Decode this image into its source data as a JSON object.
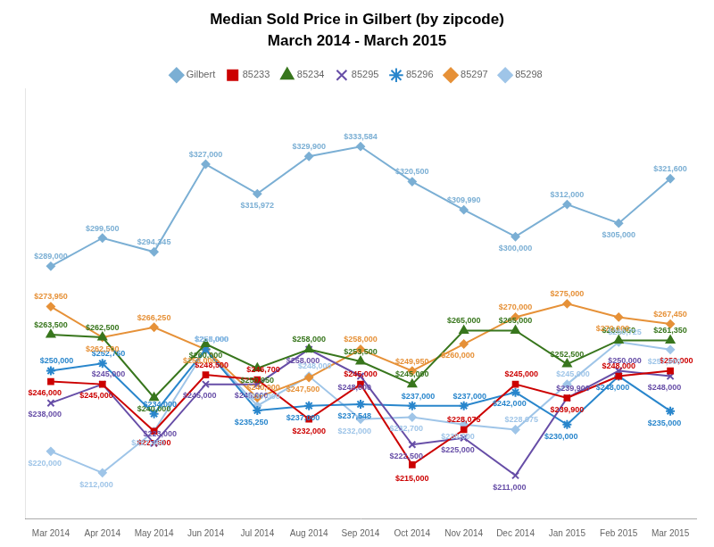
{
  "chart_data": {
    "type": "line",
    "title": "Median Sold Price in Gilbert (by zipcode)",
    "subtitle": "March 2014 - March 2015",
    "categories": [
      "Mar 2014",
      "Apr 2014",
      "May 2014",
      "Jun 2014",
      "Jul 2014",
      "Aug 2014",
      "Sep 2014",
      "Oct 2014",
      "Nov 2014",
      "Dec 2014",
      "Jan 2015",
      "Feb 2015",
      "Mar 2015"
    ],
    "series": [
      {
        "name": "Gilbert",
        "color": "#7bafd4",
        "marker": "diamond",
        "values": [
          289000,
          299500,
          294345,
          327000,
          315972,
          329900,
          333584,
          320500,
          309990,
          300000,
          312000,
          305000,
          321600
        ],
        "value_labels": [
          "$289,000",
          "$299,500",
          "$294,345",
          "$327,000",
          "$315,972",
          "$329,900",
          "$333,584",
          "$320,500",
          "$309,990",
          "$300,000",
          "$312,000",
          "$305,000",
          "$321,600"
        ]
      },
      {
        "name": "85233",
        "color": "#cc0000",
        "marker": "square",
        "values": [
          246000,
          245000,
          227500,
          248500,
          246700,
          232000,
          245000,
          215000,
          228075,
          245000,
          239900,
          248000,
          250000
        ],
        "value_labels": [
          "$246,000",
          "$245,000",
          "$227,500",
          "$248,500",
          "$246,700",
          "$232,000",
          "$245,000",
          "$215,000",
          "$228,075",
          "$245,000",
          "$239,900",
          "$248,000",
          "$250,000"
        ]
      },
      {
        "name": "85234",
        "color": "#38761d",
        "marker": "triangle",
        "values": [
          263500,
          262500,
          240000,
          260000,
          250950,
          258000,
          253500,
          245000,
          265000,
          265000,
          252500,
          261350,
          261350
        ],
        "value_labels": [
          "$263,500",
          "$262,500",
          "$240,000",
          "$260,000",
          "$250,950",
          "$258,000",
          "$253,500",
          "$245,000",
          "$265,000",
          "$265,000",
          "$252,500",
          "$261,350",
          "$261,350"
        ]
      },
      {
        "name": "85295",
        "color": "#674ea7",
        "marker": "x",
        "values": [
          238000,
          245000,
          223000,
          245000,
          245000,
          258000,
          248000,
          222500,
          225000,
          211000,
          239900,
          250000,
          248000
        ],
        "value_labels": [
          "$238,000",
          "$245,000",
          "$223,000",
          "$245,000",
          "$245,000",
          "$258,000",
          "$248,000",
          "$222,500",
          "$225,000",
          "$211,000",
          "$239,900",
          "$250,000",
          "$248,000"
        ]
      },
      {
        "name": "85296",
        "color": "#2986cc",
        "marker": "star",
        "values": [
          250000,
          252750,
          234000,
          258000,
          235250,
          237000,
          237548,
          237000,
          237000,
          242000,
          230000,
          248000,
          235000
        ],
        "value_labels": [
          "$250,000",
          "$252,750",
          "$234,000",
          "$258,000",
          "$235,250",
          "$237,000",
          "$237,548",
          "$237,000",
          "$237,000",
          "$242,000",
          "$230,000",
          "$248,000",
          "$235,000"
        ]
      },
      {
        "name": "85297",
        "color": "#e69138",
        "marker": "diamond",
        "values": [
          273950,
          262500,
          266250,
          258000,
          240000,
          247500,
          258000,
          249950,
          260000,
          270000,
          275000,
          270000,
          267450
        ],
        "value_labels": [
          "$273,950",
          "$262,500",
          "$266,250",
          "$258,000",
          "$240,000",
          "$247,500",
          "$258,000",
          "$249,950",
          "$260,000",
          "$270,000",
          "$275,000",
          "$270,000",
          "$267,450"
        ]
      },
      {
        "name": "85298",
        "color": "#9fc5e8",
        "marker": "diamond",
        "values": [
          220000,
          212000,
          227450,
          258000,
          237000,
          248000,
          232000,
          232700,
          230000,
          228075,
          245000,
          260725,
          257900
        ],
        "value_labels": [
          "$220,000",
          "$212,000",
          "$227,450",
          "$258,000",
          "$237,000",
          "$248,000",
          "$232,000",
          "$232,700",
          "$230,000",
          "$228,075",
          "$245,000",
          "$260,725",
          "$257,900"
        ]
      }
    ],
    "ylim": [
      195000,
      355000
    ],
    "tick_labels": "x",
    "grid": false,
    "legend": "top",
    "data_labels": true
  }
}
